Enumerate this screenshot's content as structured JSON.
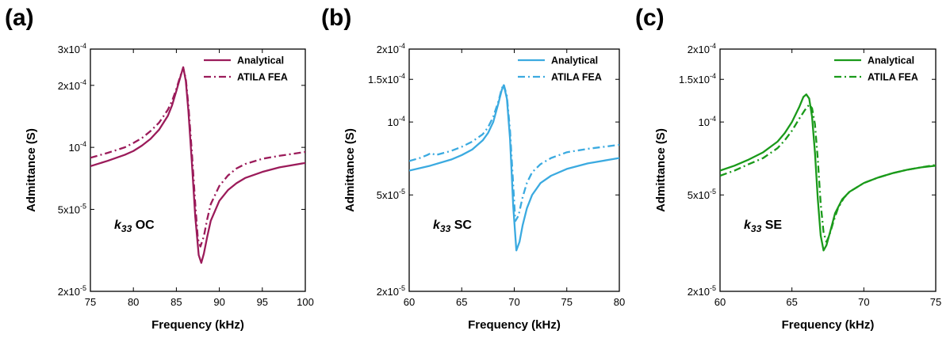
{
  "chart_data": [
    {
      "panel_label": "(a)",
      "type": "line",
      "color": "#9B1B5A",
      "xlabel": "Frequency (kHz)",
      "ylabel": "Admittance (S)",
      "xlim": [
        75,
        100
      ],
      "ylim": [
        2e-05,
        0.0003
      ],
      "y_scale": "log",
      "x_ticks": [
        75,
        80,
        85,
        90,
        95,
        100
      ],
      "x_tick_labels": [
        "75",
        "80",
        "85",
        "90",
        "95",
        "100"
      ],
      "y_ticks": [
        2e-05,
        5e-05,
        0.0001,
        0.0002,
        0.0003
      ],
      "y_tick_labels": [
        {
          "base": "2x10",
          "exp": "-5"
        },
        {
          "base": "5x10",
          "exp": "-5"
        },
        {
          "base": "10",
          "exp": "-4"
        },
        {
          "base": "2x10",
          "exp": "-4"
        },
        {
          "base": "3x10",
          "exp": "-4"
        }
      ],
      "annotation": {
        "sym": "k",
        "sub": "33",
        "rest": " OC"
      },
      "legend": "top-right",
      "series": [
        {
          "name": "Analytical",
          "style": "solid",
          "x": [
            75,
            77,
            79,
            80,
            81,
            82,
            83,
            84,
            84.5,
            85,
            85.4,
            85.8,
            86.1,
            86.4,
            86.8,
            87.2,
            87.6,
            87.9,
            88.2,
            88.6,
            89,
            90,
            91,
            92,
            93,
            95,
            97,
            100
          ],
          "y": [
            8.1e-05,
            8.6e-05,
            9.2e-05,
            9.6e-05,
            0.000102,
            0.00011,
            0.000122,
            0.000142,
            0.00016,
            0.000188,
            0.000215,
            0.000245,
            0.00021,
            0.00015,
            8.5e-05,
            4.6e-05,
            3e-05,
            2.75e-05,
            3.05e-05,
            3.7e-05,
            4.4e-05,
            5.5e-05,
            6.2e-05,
            6.7e-05,
            7.1e-05,
            7.6e-05,
            8e-05,
            8.4e-05
          ]
        },
        {
          "name": "ATILA FEA",
          "style": "dashdot",
          "x": [
            75,
            77,
            79,
            80,
            81,
            82,
            83,
            84,
            84.5,
            85,
            85.4,
            85.8,
            86.1,
            86.4,
            86.8,
            87.2,
            87.5,
            87.8,
            88.2,
            88.6,
            89,
            90,
            91,
            92,
            93,
            95,
            97,
            100
          ],
          "y": [
            8.9e-05,
            9.4e-05,
            0.0001,
            0.000105,
            0.000111,
            0.00012,
            0.000132,
            0.000152,
            0.000168,
            0.000192,
            0.000218,
            0.000243,
            0.000215,
            0.00016,
            9.5e-05,
            5.3e-05,
            3.6e-05,
            3.3e-05,
            3.7e-05,
            4.5e-05,
            5.3e-05,
            6.5e-05,
            7.3e-05,
            7.9e-05,
            8.3e-05,
            8.8e-05,
            9.1e-05,
            9.5e-05
          ]
        }
      ]
    },
    {
      "panel_label": "(b)",
      "type": "line",
      "color": "#3BAAE0",
      "xlabel": "Frequency (kHz)",
      "ylabel": "Admittance (S)",
      "xlim": [
        60,
        80
      ],
      "ylim": [
        2e-05,
        0.0002
      ],
      "y_scale": "log",
      "x_ticks": [
        60,
        65,
        70,
        75,
        80
      ],
      "x_tick_labels": [
        "60",
        "65",
        "70",
        "75",
        "80"
      ],
      "y_ticks": [
        2e-05,
        5e-05,
        0.0001,
        0.00015,
        0.0002
      ],
      "y_tick_labels": [
        {
          "base": "2x10",
          "exp": "-5"
        },
        {
          "base": "5x10",
          "exp": "-5"
        },
        {
          "base": "10",
          "exp": "-4"
        },
        {
          "base": "1.5x10",
          "exp": "-4"
        },
        {
          "base": "2x10",
          "exp": "-4"
        }
      ],
      "annotation": {
        "sym": "k",
        "sub": "33",
        "rest": " SC"
      },
      "legend": "top-right",
      "series": [
        {
          "name": "Analytical",
          "style": "solid",
          "x": [
            60,
            62,
            64,
            65,
            66,
            67,
            67.5,
            68,
            68.5,
            68.8,
            69.0,
            69.3,
            69.6,
            69.9,
            70.2,
            70.5,
            70.8,
            71.2,
            71.7,
            72.5,
            73.5,
            75,
            77,
            80
          ],
          "y": [
            6.3e-05,
            6.6e-05,
            7e-05,
            7.3e-05,
            7.7e-05,
            8.4e-05,
            9e-05,
            0.0001,
            0.00012,
            0.000135,
            0.000142,
            0.000125,
            8.5e-05,
            4.5e-05,
            2.95e-05,
            3.2e-05,
            3.75e-05,
            4.4e-05,
            5e-05,
            5.6e-05,
            6e-05,
            6.4e-05,
            6.75e-05,
            7.1e-05
          ]
        },
        {
          "name": "ATILA FEA",
          "style": "dashdot",
          "x": [
            60,
            61,
            61.7,
            62.1,
            62.5,
            64,
            65,
            66,
            67,
            67.5,
            68,
            68.5,
            68.8,
            69.0,
            69.3,
            69.6,
            69.9,
            70.1,
            70.4,
            70.8,
            71.2,
            71.7,
            72.5,
            73.5,
            75,
            77,
            80
          ],
          "y": [
            6.9e-05,
            7.1e-05,
            7.3e-05,
            7.45e-05,
            7.3e-05,
            7.6e-05,
            7.9e-05,
            8.3e-05,
            8.9e-05,
            9.5e-05,
            0.000105,
            0.000122,
            0.000137,
            0.000143,
            0.000128,
            9.2e-05,
            5.5e-05,
            3.9e-05,
            4.1e-05,
            4.9e-05,
            5.6e-05,
            6.2e-05,
            6.7e-05,
            7.1e-05,
            7.5e-05,
            7.75e-05,
            8.05e-05
          ]
        }
      ]
    },
    {
      "panel_label": "(c)",
      "type": "line",
      "color": "#1A9A1A",
      "xlabel": "Frequency (kHz)",
      "ylabel": "Admittance (S)",
      "xlim": [
        60,
        75
      ],
      "ylim": [
        2e-05,
        0.0002
      ],
      "y_scale": "log",
      "x_ticks": [
        60,
        65,
        70,
        75
      ],
      "x_tick_labels": [
        "60",
        "65",
        "70",
        "75"
      ],
      "y_ticks": [
        2e-05,
        5e-05,
        0.0001,
        0.00015,
        0.0002
      ],
      "y_tick_labels": [
        {
          "base": "2x10",
          "exp": "-5"
        },
        {
          "base": "5x10",
          "exp": "-5"
        },
        {
          "base": "10",
          "exp": "-4"
        },
        {
          "base": "1.5x10",
          "exp": "-4"
        },
        {
          "base": "2x10",
          "exp": "-4"
        }
      ],
      "annotation": {
        "sym": "k",
        "sub": "33",
        "rest": " SE"
      },
      "legend": "top-right",
      "series": [
        {
          "name": "Analytical",
          "style": "solid",
          "x": [
            60,
            61,
            62,
            63,
            64,
            64.5,
            65,
            65.5,
            65.8,
            66.0,
            66.2,
            66.4,
            66.6,
            66.8,
            67.0,
            67.2,
            67.4,
            67.7,
            68.0,
            68.5,
            69,
            70,
            71,
            72,
            73,
            74,
            75
          ],
          "y": [
            6.3e-05,
            6.6e-05,
            7e-05,
            7.5e-05,
            8.3e-05,
            9e-05,
            0.0001,
            0.000115,
            0.000127,
            0.00013,
            0.000125,
            0.000105,
            7.5e-05,
            4.8e-05,
            3.4e-05,
            2.95e-05,
            3.1e-05,
            3.6e-05,
            4.2e-05,
            4.8e-05,
            5.15e-05,
            5.6e-05,
            5.9e-05,
            6.15e-05,
            6.35e-05,
            6.5e-05,
            6.6e-05
          ]
        },
        {
          "name": "ATILA FEA",
          "style": "dashdot",
          "x": [
            60,
            61,
            62,
            63,
            64,
            64.5,
            65,
            65.5,
            65.9,
            66.2,
            66.4,
            66.6,
            66.8,
            67.0,
            67.2,
            67.4,
            67.6,
            67.9,
            68.2,
            68.6,
            69,
            70,
            71,
            72,
            73,
            74,
            75
          ],
          "y": [
            6e-05,
            6.3e-05,
            6.7e-05,
            7.1e-05,
            7.8e-05,
            8.4e-05,
            9.2e-05,
            0.000103,
            0.000112,
            0.000118,
            0.000114,
            9.8e-05,
            7e-05,
            4.6e-05,
            3.5e-05,
            3.2e-05,
            3.4e-05,
            3.9e-05,
            4.4e-05,
            4.85e-05,
            5.15e-05,
            5.6e-05,
            5.9e-05,
            6.15e-05,
            6.35e-05,
            6.5e-05,
            6.65e-05
          ]
        }
      ]
    }
  ]
}
